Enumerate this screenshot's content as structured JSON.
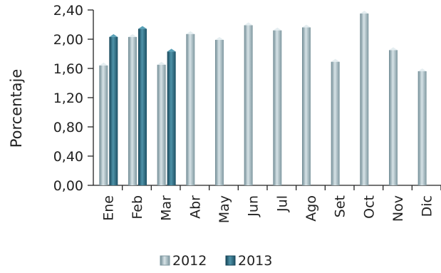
{
  "chart_data": {
    "type": "bar",
    "title": "",
    "xlabel": "",
    "ylabel": "Porcentaje",
    "ylim": [
      0,
      2.4
    ],
    "yticks": [
      "0,00",
      "0,40",
      "0,80",
      "1,20",
      "1,60",
      "2,00",
      "2,40"
    ],
    "ytick_values": [
      0,
      0.4,
      0.8,
      1.2,
      1.6,
      2.0,
      2.4
    ],
    "categories": [
      "Ene",
      "Feb",
      "Mar",
      "Abr",
      "May",
      "Jun",
      "Jul",
      "Ago",
      "Set",
      "Oct",
      "Nov",
      "Dic"
    ],
    "series": [
      {
        "name": "2012",
        "color": "#a9bcc2",
        "values": [
          1.68,
          2.07,
          1.69,
          2.11,
          2.03,
          2.23,
          2.16,
          2.2,
          1.73,
          2.39,
          1.89,
          1.6
        ]
      },
      {
        "name": "2013",
        "color": "#2e7086",
        "values": [
          2.07,
          2.18,
          1.87,
          null,
          null,
          null,
          null,
          null,
          null,
          null,
          null,
          null
        ]
      }
    ],
    "legend": "bottom",
    "grid": false
  }
}
